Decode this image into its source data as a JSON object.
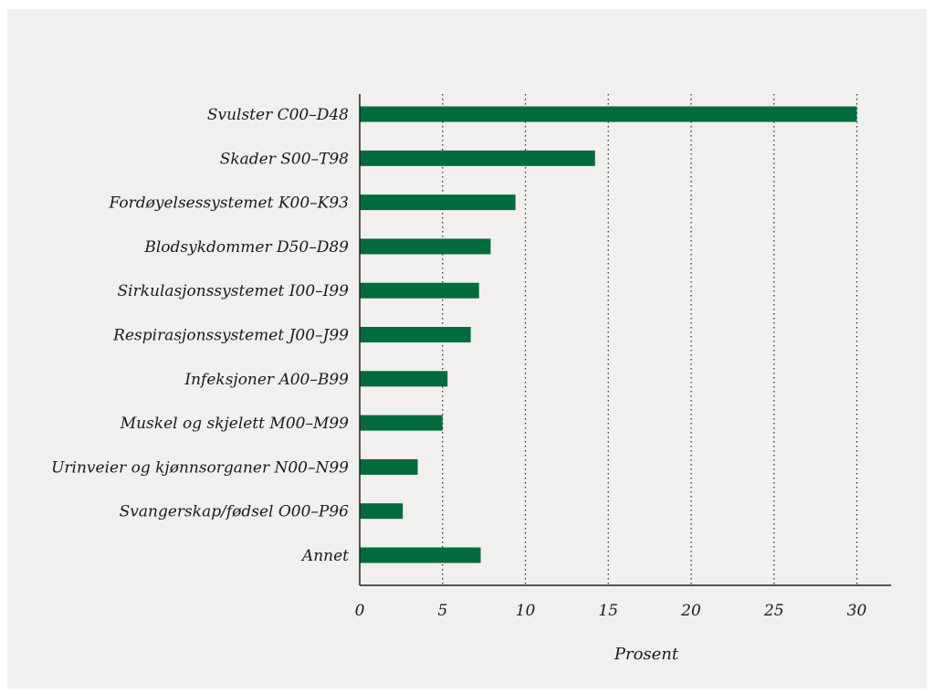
{
  "chart_data": {
    "type": "bar",
    "orientation": "horizontal",
    "title": "",
    "xlabel": "Prosent",
    "ylabel": "",
    "xlim": [
      0,
      32
    ],
    "x_ticks": [
      0,
      5,
      10,
      15,
      20,
      25,
      30
    ],
    "grid": "vertical dotted",
    "bar_color": "#006b3c",
    "categories": [
      "Svulster C00–D48",
      "Skader S00–T98",
      "Fordøyelsessystemet K00–K93",
      "Blodsykdommer D50–D89",
      "Sirkulasjonssystemet I00–I99",
      "Respirasjonssystemet J00–J99",
      "Infeksjoner A00–B99",
      "Muskel og skjelett M00–M99",
      "Urinveier og kjønnsorganer N00–N99",
      "Svangerskap/fødsel O00–P96",
      "Annet"
    ],
    "values": [
      30.0,
      14.2,
      9.4,
      7.9,
      7.2,
      6.7,
      5.3,
      5.0,
      3.5,
      2.6,
      7.3
    ]
  }
}
